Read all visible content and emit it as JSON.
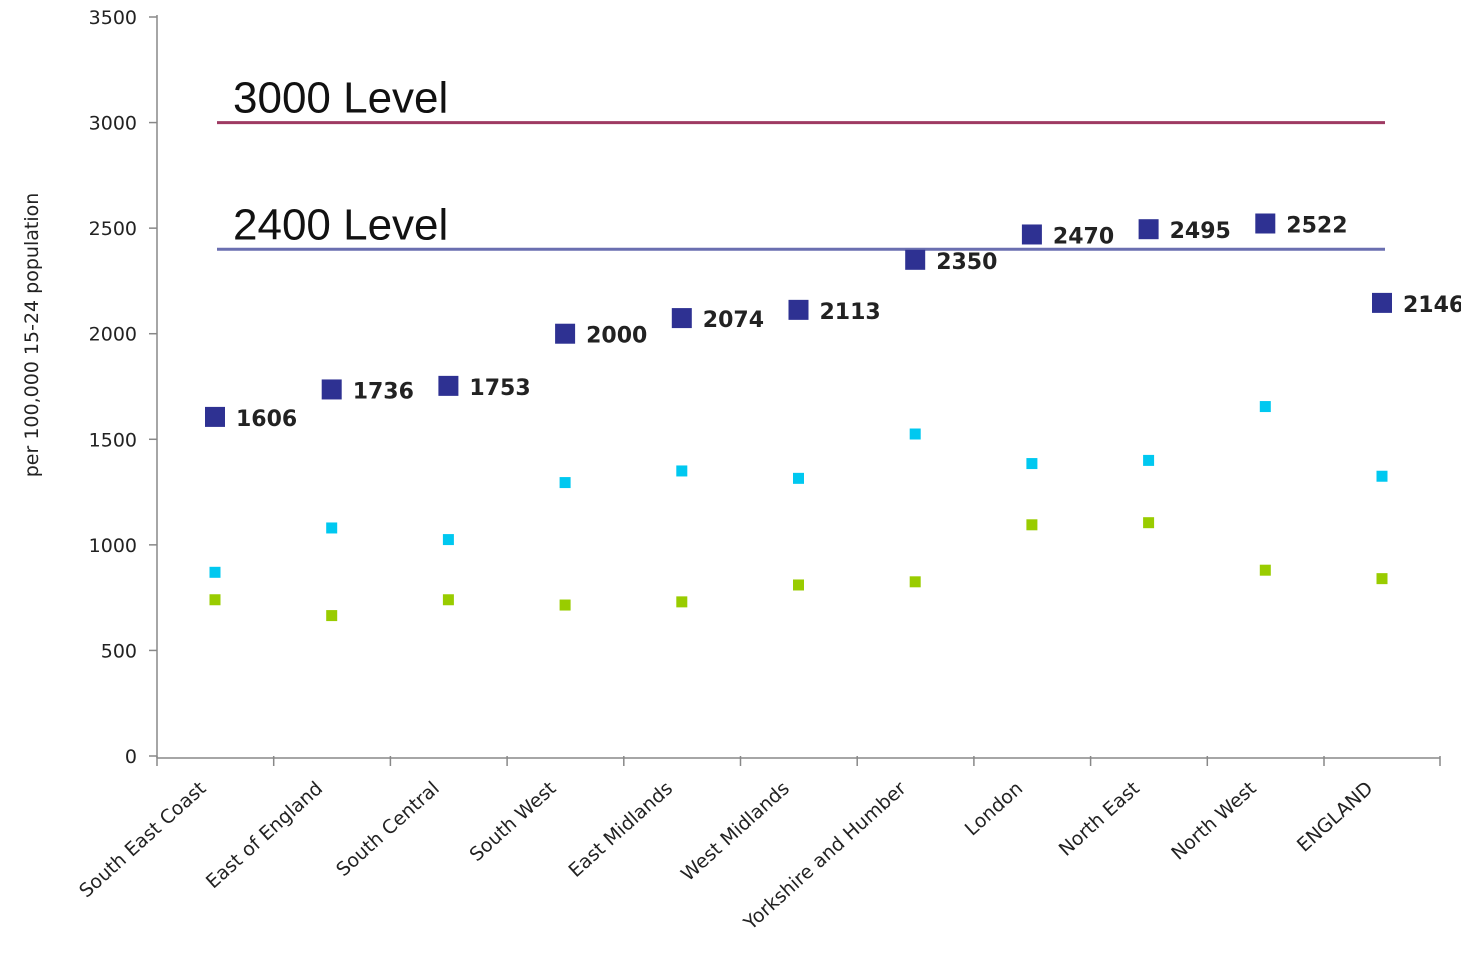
{
  "chart_data": {
    "type": "scatter",
    "ylabel": "per 100,000 15-24 population",
    "xlabel": "",
    "ylim": [
      0,
      3500
    ],
    "yticks": [
      0,
      500,
      1000,
      1500,
      2000,
      2500,
      3000,
      3500
    ],
    "grid": false,
    "categories": [
      "South East Coast",
      "East of England",
      "South Central",
      "South West",
      "East Midlands",
      "West Midlands",
      "Yorkshire and Humber",
      "London",
      "North East",
      "North West",
      "ENGLAND"
    ],
    "series": [
      {
        "color": "#2e3192",
        "labeled": true,
        "values": [
          1606,
          1736,
          1753,
          2000,
          2074,
          2113,
          2350,
          2470,
          2495,
          2522,
          2146
        ]
      },
      {
        "color": "#00c8f0",
        "labeled": false,
        "values": [
          870,
          1080,
          1025,
          1295,
          1350,
          1315,
          1525,
          1385,
          1400,
          1655,
          1325
        ]
      },
      {
        "color": "#99cc00",
        "labeled": false,
        "values": [
          740,
          665,
          740,
          715,
          730,
          810,
          825,
          1095,
          1105,
          880,
          840
        ]
      }
    ],
    "reference_lines": [
      {
        "label": "3000 Level",
        "value": 3000,
        "color": "#9e3a62"
      },
      {
        "label": "2400 Level",
        "value": 2400,
        "color": "#6a6fb0"
      }
    ]
  }
}
